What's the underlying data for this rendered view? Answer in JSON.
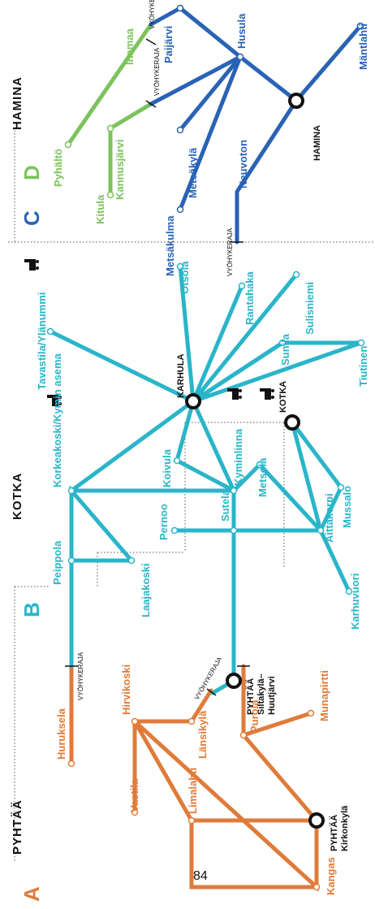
{
  "page_number": "84",
  "regions": {
    "pyhtaa": "PYHTÄÄ",
    "kotka": "KOTKA",
    "hamina": "HAMINA"
  },
  "zone_letters": {
    "a": "A",
    "b": "B",
    "c": "C",
    "d": "D"
  },
  "zone_border": "VYÖHYKERAJA",
  "hubs": {
    "pyhtaa_kirkonkyla": [
      "PYHTÄÄ",
      "Kirkonkylä"
    ],
    "pyhtaa_siltakyla": [
      "PYHTÄÄ",
      "Siltakylä–",
      "Huutjärvi"
    ],
    "karhula": "KARHULA",
    "kotka": "KOTKA",
    "hamina": "HAMINA"
  },
  "stops_orange": {
    "kangas": "Kangas",
    "limalahti": "Limalahti",
    "vastila": "Vastila",
    "hirvikoski": "Hirvikoski",
    "huruksela": "Huruksela",
    "lansikyla": "Länsikylä",
    "purola": "Purola",
    "munapirtti": "Munapirtti"
  },
  "stops_teal": {
    "laajakoski": "Laajakoski",
    "peippola": "Peippola",
    "korkeakoski": "Korkeakoski/Kymin asema",
    "pernoo": "Pernoo",
    "sutela": "Sutela",
    "koivula": "Koivula",
    "kyminlinna": "Kyminlinna",
    "metsola": "Metsola",
    "aittakorpi": "Aittakorpi",
    "karhuvuori": "Karhuvuori",
    "mussalo": "Mussalo",
    "tavastila": "Tavastila/Ylänummi",
    "otsola": "Otsola",
    "rantahaka": "Rantahaka",
    "sunila": "Sunila",
    "sulisniemi": "Sulisniemi",
    "tiutinen": "Tiutinen"
  },
  "stops_green": {
    "kitula": "Kitula",
    "kannusjarvi": "Kannusjärvi",
    "pyhalto": "Pyhältö",
    "ihamaa": "Ihamaa"
  },
  "stops_blue": {
    "metsakulma": "Metsäkulma",
    "metsakyla": "Metsäkylä",
    "neuvoton": "Neuvoton",
    "paijarvi": "Paijärvi",
    "husula": "Husula",
    "mantlahti": "Mäntlahti"
  },
  "colors": {
    "orange": "#e07b3a",
    "teal": "#2ab5c9",
    "green": "#7cc35b",
    "blue": "#2a63b5",
    "zone_a": "#e07b3a",
    "zone_b": "#2ab5c9",
    "zone_c": "#2a63b5",
    "zone_d": "#7cc35b"
  },
  "icons": {
    "station": "train-station-icon"
  }
}
